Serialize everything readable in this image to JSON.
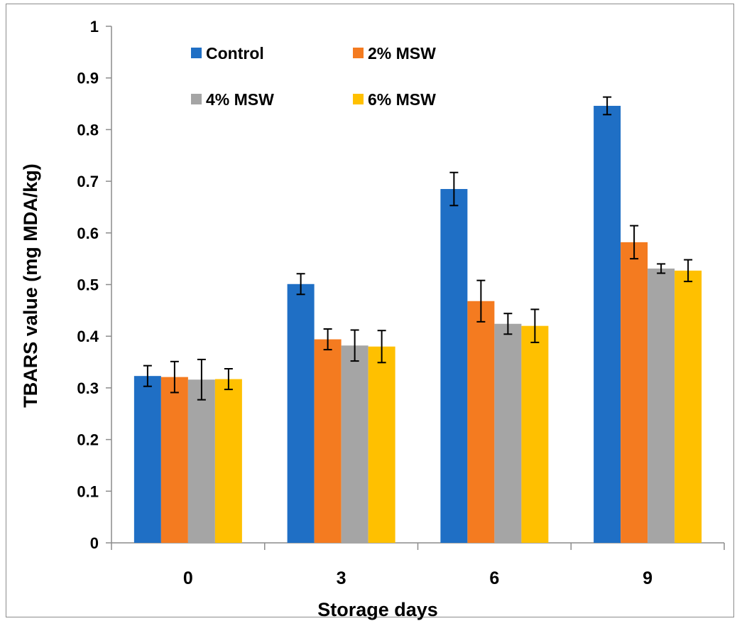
{
  "chart_data": {
    "type": "bar",
    "xlabel": "Storage days",
    "ylabel": "TBARS value (mg MDA/kg)",
    "categories": [
      "0",
      "3",
      "6",
      "9"
    ],
    "ylim": [
      0,
      1
    ],
    "yticks": [
      "0",
      "0.1",
      "0.2",
      "0.3",
      "0.4",
      "0.5",
      "0.6",
      "0.7",
      "0.8",
      "0.9",
      "1"
    ],
    "grid": false,
    "legend_position": "top-inside",
    "series": [
      {
        "name": "Control",
        "color": "#1F6FC5",
        "values": [
          0.323,
          0.501,
          0.685,
          0.846
        ],
        "errors": [
          0.02,
          0.02,
          0.032,
          0.017
        ]
      },
      {
        "name": "2% MSW",
        "color": "#F47B20",
        "values": [
          0.321,
          0.394,
          0.468,
          0.582
        ],
        "errors": [
          0.03,
          0.02,
          0.04,
          0.032
        ]
      },
      {
        "name": "4% MSW",
        "color": "#A5A5A5",
        "values": [
          0.316,
          0.382,
          0.424,
          0.531
        ],
        "errors": [
          0.039,
          0.03,
          0.02,
          0.009
        ]
      },
      {
        "name": "6% MSW",
        "color": "#FFC000",
        "values": [
          0.317,
          0.38,
          0.42,
          0.527
        ],
        "errors": [
          0.02,
          0.031,
          0.032,
          0.021
        ]
      }
    ]
  }
}
